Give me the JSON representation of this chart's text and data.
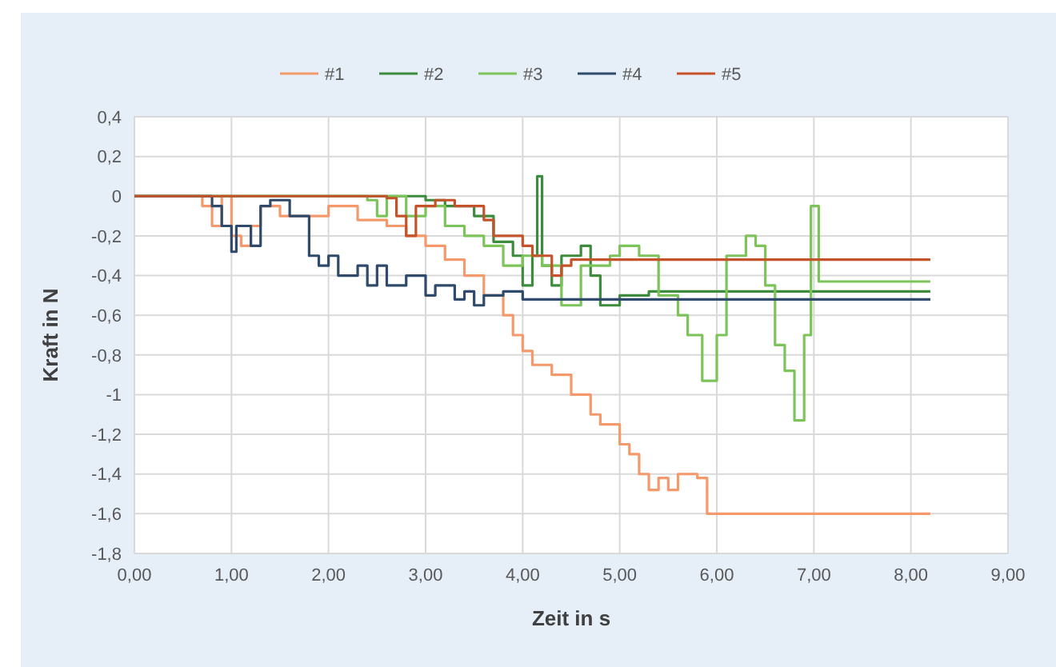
{
  "chart_data": {
    "type": "step",
    "xlabel": "Zeit in s",
    "ylabel": "Kraft in N",
    "xlim": [
      0,
      9
    ],
    "ylim": [
      -1.8,
      0.4
    ],
    "xticks": [
      {
        "value": 0,
        "label": "0,00"
      },
      {
        "value": 1,
        "label": "1,00"
      },
      {
        "value": 2,
        "label": "2,00"
      },
      {
        "value": 3,
        "label": "3,00"
      },
      {
        "value": 4,
        "label": "4,00"
      },
      {
        "value": 5,
        "label": "5,00"
      },
      {
        "value": 6,
        "label": "6,00"
      },
      {
        "value": 7,
        "label": "7,00"
      },
      {
        "value": 8,
        "label": "8,00"
      },
      {
        "value": 9,
        "label": "9,00"
      }
    ],
    "yticks": [
      {
        "value": 0.4,
        "label": "0,4"
      },
      {
        "value": 0.2,
        "label": "0,2"
      },
      0,
      {
        "value": -0.2,
        "label": "-0,2"
      },
      {
        "value": -0.4,
        "label": "-0,4"
      },
      {
        "value": -0.6,
        "label": "-0,6"
      },
      {
        "value": -0.8,
        "label": "-0,8"
      },
      -1,
      {
        "value": -1.2,
        "label": "-1,2"
      },
      {
        "value": -1.4,
        "label": "-1,4"
      },
      {
        "value": -1.6,
        "label": "-1,6"
      },
      {
        "value": -1.8,
        "label": "-1,8"
      }
    ],
    "grid": true,
    "legend": "top",
    "line_style": "solid",
    "marker": "none",
    "series": [
      {
        "name": "#1",
        "color": "#f4996b",
        "x": [
          0,
          0.7,
          0.8,
          0.9,
          1.0,
          1.1,
          1.2,
          1.3,
          1.5,
          2.0,
          2.3,
          2.6,
          2.8,
          3.0,
          3.2,
          3.4,
          3.6,
          3.8,
          3.9,
          4.0,
          4.1,
          4.3,
          4.5,
          4.7,
          4.8,
          5.0,
          5.1,
          5.2,
          5.3,
          5.4,
          5.5,
          5.6,
          5.8,
          5.9,
          8.2
        ],
        "values": [
          0,
          -0.05,
          -0.15,
          0,
          -0.2,
          -0.25,
          -0.15,
          -0.05,
          -0.1,
          -0.05,
          -0.12,
          -0.15,
          -0.2,
          -0.25,
          -0.32,
          -0.4,
          -0.5,
          -0.6,
          -0.7,
          -0.78,
          -0.85,
          -0.9,
          -1.0,
          -1.1,
          -1.15,
          -1.25,
          -1.3,
          -1.4,
          -1.48,
          -1.42,
          -1.48,
          -1.4,
          -1.42,
          -1.6,
          -1.6
        ]
      },
      {
        "name": "#2",
        "color": "#3d8b3d",
        "x": [
          0,
          3.0,
          3.2,
          3.5,
          3.7,
          3.9,
          4.0,
          4.1,
          4.15,
          4.2,
          4.3,
          4.4,
          4.6,
          4.7,
          4.8,
          5.0,
          5.3,
          8.2
        ],
        "values": [
          0,
          -0.02,
          -0.05,
          -0.1,
          -0.23,
          -0.3,
          -0.45,
          -0.3,
          0.1,
          -0.35,
          -0.45,
          -0.3,
          -0.25,
          -0.4,
          -0.55,
          -0.5,
          -0.48,
          -0.48
        ]
      },
      {
        "name": "#3",
        "color": "#7cc45a",
        "x": [
          0,
          2.4,
          2.5,
          2.6,
          2.8,
          3.0,
          3.2,
          3.4,
          3.6,
          3.8,
          4.0,
          4.2,
          4.4,
          4.6,
          4.9,
          5.0,
          5.2,
          5.4,
          5.6,
          5.7,
          5.85,
          6.0,
          6.1,
          6.3,
          6.4,
          6.5,
          6.6,
          6.7,
          6.8,
          6.9,
          6.97,
          7.05,
          8.2
        ],
        "values": [
          0,
          -0.02,
          -0.1,
          0,
          -0.1,
          -0.05,
          -0.15,
          -0.2,
          -0.25,
          -0.35,
          -0.3,
          -0.35,
          -0.55,
          -0.35,
          -0.3,
          -0.25,
          -0.3,
          -0.5,
          -0.6,
          -0.7,
          -0.93,
          -0.7,
          -0.3,
          -0.2,
          -0.25,
          -0.45,
          -0.75,
          -0.88,
          -1.13,
          -0.7,
          -0.05,
          -0.43,
          -0.43
        ]
      },
      {
        "name": "#4",
        "color": "#2f4a6b",
        "x": [
          0,
          0.8,
          0.9,
          1.0,
          1.05,
          1.2,
          1.3,
          1.4,
          1.6,
          1.8,
          1.9,
          2.0,
          2.1,
          2.3,
          2.4,
          2.5,
          2.6,
          2.8,
          3.0,
          3.1,
          3.3,
          3.4,
          3.5,
          3.6,
          3.8,
          4.0,
          8.2
        ],
        "values": [
          0,
          -0.05,
          -0.15,
          -0.28,
          -0.15,
          -0.25,
          -0.05,
          -0.02,
          -0.1,
          -0.3,
          -0.35,
          -0.3,
          -0.4,
          -0.35,
          -0.45,
          -0.35,
          -0.45,
          -0.4,
          -0.5,
          -0.45,
          -0.52,
          -0.48,
          -0.55,
          -0.5,
          -0.48,
          -0.52,
          -0.52
        ]
      },
      {
        "name": "#5",
        "color": "#c4532c",
        "x": [
          0,
          2.6,
          2.7,
          2.8,
          2.9,
          3.1,
          3.3,
          3.6,
          3.7,
          4.0,
          4.1,
          4.3,
          4.4,
          4.5,
          8.2
        ],
        "values": [
          0,
          -0.01,
          -0.1,
          -0.2,
          -0.05,
          -0.02,
          -0.05,
          -0.12,
          -0.2,
          -0.25,
          -0.3,
          -0.4,
          -0.35,
          -0.32,
          -0.32
        ]
      }
    ]
  }
}
